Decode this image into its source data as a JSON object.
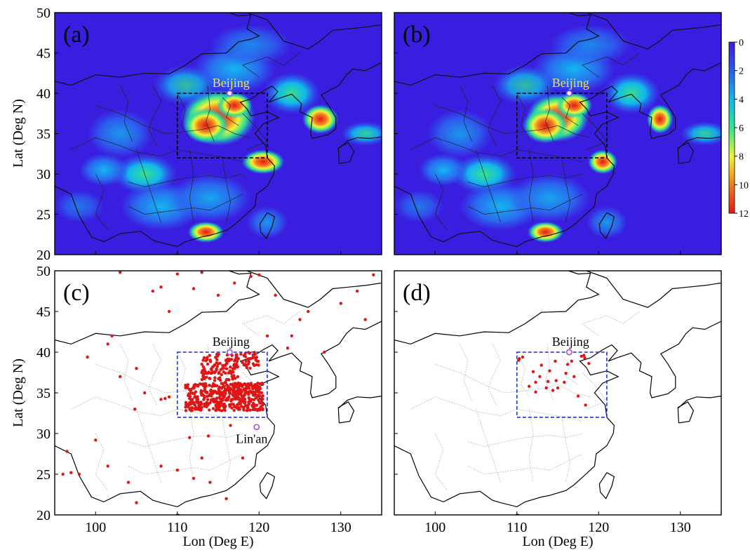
{
  "axes": {
    "lat_label": "Lat (Deg N)",
    "lon_label": "Lon (Deg E)",
    "lat_ticks": [
      "20",
      "25",
      "30",
      "35",
      "40",
      "45",
      "50"
    ],
    "lon_ticks": [
      "100",
      "110",
      "120",
      "130"
    ],
    "lon_range": [
      95,
      135
    ],
    "lat_range": [
      20,
      50
    ]
  },
  "colorbar": {
    "ticks": [
      "0",
      "2",
      "4",
      "6",
      "8",
      "10",
      "12"
    ],
    "range": [
      0,
      12
    ],
    "colors": [
      "#3a1ee0",
      "#2a5cf0",
      "#12b6ee",
      "#34e38a",
      "#f2f23a",
      "#f07f1e",
      "#e8151b"
    ]
  },
  "panels": [
    {
      "id": "a",
      "label": "(a)",
      "type": "heatmap",
      "city_label": "Beijing"
    },
    {
      "id": "b",
      "label": "(b)",
      "type": "heatmap",
      "city_label": "Beijing"
    },
    {
      "id": "c",
      "label": "(c)",
      "type": "points",
      "city_label": "Beijing",
      "city2_label": "Lin'an"
    },
    {
      "id": "d",
      "label": "(d)",
      "type": "points",
      "city_label": "Beijing"
    }
  ],
  "sites": {
    "beijing": {
      "lon": 116.4,
      "lat": 40.0
    },
    "linan": {
      "lon": 119.7,
      "lat": 30.8
    }
  },
  "study_box": {
    "lon": [
      110,
      121
    ],
    "lat": [
      32,
      40
    ]
  },
  "colors": {
    "background_low": "#3a1ee0",
    "hotspot": "#e8151b",
    "points": "#e01515",
    "box_dashed_top": "#000000",
    "box_dashed_bottom": "#1f2fd0",
    "site_marker": "#9a4fe0",
    "city_label_top": "#f0e060",
    "coast": "#000000",
    "borders": "#b8b8b8"
  }
}
